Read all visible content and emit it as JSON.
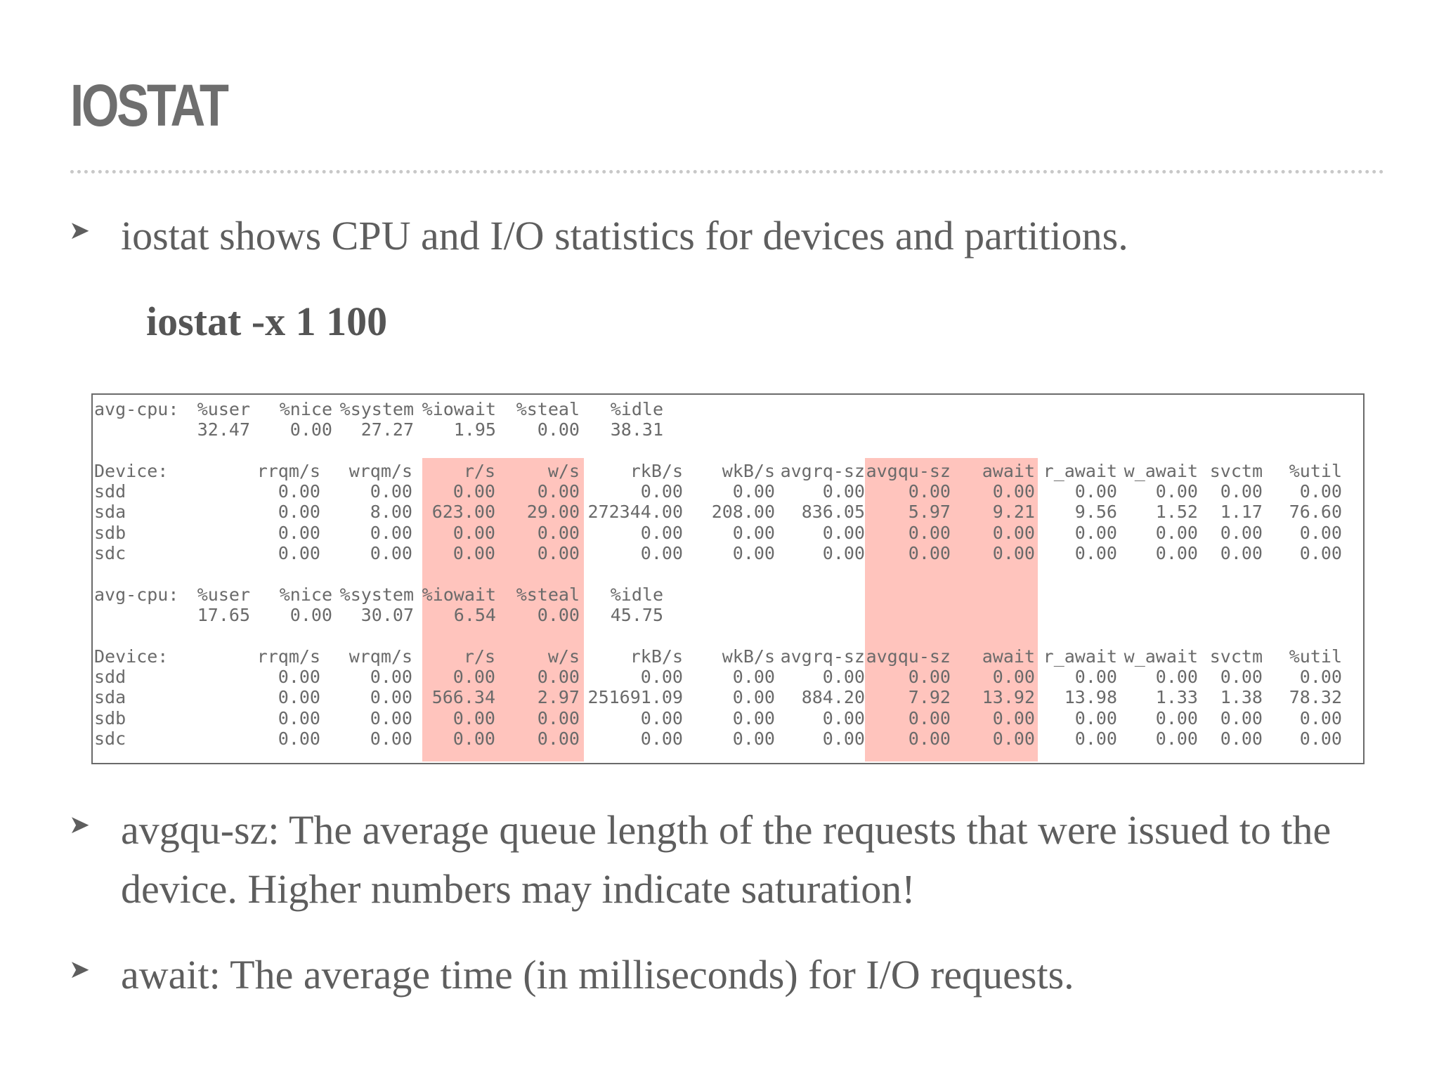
{
  "slide": {
    "title": "IOSTAT",
    "intro_bullet": "iostat shows CPU and I/O statistics for devices and partitions.",
    "command": "iostat -x 1 100",
    "bullets": [
      "avgqu-sz: The average queue length of the requests that were issued to the device. Higher numbers may indicate saturation!",
      "await: The average time (in milliseconds) for I/O requests."
    ],
    "bullet_marker": "➤"
  },
  "iostat_output": {
    "highlight_color": "#ffc4bd",
    "highlighted_columns": [
      "r/s",
      "w/s",
      "avgqu-sz",
      "await"
    ],
    "samples": [
      {
        "cpu_label": "avg-cpu:",
        "cpu_headers": [
          "%user",
          "%nice",
          "%system",
          "%iowait",
          "%steal",
          "%idle"
        ],
        "cpu_values": [
          "32.47",
          "0.00",
          "27.27",
          "1.95",
          "0.00",
          "38.31"
        ],
        "device_headers": [
          "Device:",
          "rrqm/s",
          "wrqm/s",
          "r/s",
          "w/s",
          "rkB/s",
          "wkB/s",
          "avgrq-sz",
          "avgqu-sz",
          "await",
          "r_await",
          "w_await",
          "svctm",
          "%util"
        ],
        "devices": [
          [
            "sdd",
            "0.00",
            "0.00",
            "0.00",
            "0.00",
            "0.00",
            "0.00",
            "0.00",
            "0.00",
            "0.00",
            "0.00",
            "0.00",
            "0.00",
            "0.00"
          ],
          [
            "sda",
            "0.00",
            "8.00",
            "623.00",
            "29.00",
            "272344.00",
            "208.00",
            "836.05",
            "5.97",
            "9.21",
            "9.56",
            "1.52",
            "1.17",
            "76.60"
          ],
          [
            "sdb",
            "0.00",
            "0.00",
            "0.00",
            "0.00",
            "0.00",
            "0.00",
            "0.00",
            "0.00",
            "0.00",
            "0.00",
            "0.00",
            "0.00",
            "0.00"
          ],
          [
            "sdc",
            "0.00",
            "0.00",
            "0.00",
            "0.00",
            "0.00",
            "0.00",
            "0.00",
            "0.00",
            "0.00",
            "0.00",
            "0.00",
            "0.00",
            "0.00"
          ]
        ]
      },
      {
        "cpu_label": "avg-cpu:",
        "cpu_headers": [
          "%user",
          "%nice",
          "%system",
          "%iowait",
          "%steal",
          "%idle"
        ],
        "cpu_values": [
          "17.65",
          "0.00",
          "30.07",
          "6.54",
          "0.00",
          "45.75"
        ],
        "device_headers": [
          "Device:",
          "rrqm/s",
          "wrqm/s",
          "r/s",
          "w/s",
          "rkB/s",
          "wkB/s",
          "avgrq-sz",
          "avgqu-sz",
          "await",
          "r_await",
          "w_await",
          "svctm",
          "%util"
        ],
        "devices": [
          [
            "sdd",
            "0.00",
            "0.00",
            "0.00",
            "0.00",
            "0.00",
            "0.00",
            "0.00",
            "0.00",
            "0.00",
            "0.00",
            "0.00",
            "0.00",
            "0.00"
          ],
          [
            "sda",
            "0.00",
            "0.00",
            "566.34",
            "2.97",
            "251691.09",
            "0.00",
            "884.20",
            "7.92",
            "13.92",
            "13.98",
            "1.33",
            "1.38",
            "78.32"
          ],
          [
            "sdb",
            "0.00",
            "0.00",
            "0.00",
            "0.00",
            "0.00",
            "0.00",
            "0.00",
            "0.00",
            "0.00",
            "0.00",
            "0.00",
            "0.00",
            "0.00"
          ],
          [
            "sdc",
            "0.00",
            "0.00",
            "0.00",
            "0.00",
            "0.00",
            "0.00",
            "0.00",
            "0.00",
            "0.00",
            "0.00",
            "0.00",
            "0.00",
            "0.00"
          ]
        ]
      }
    ]
  }
}
